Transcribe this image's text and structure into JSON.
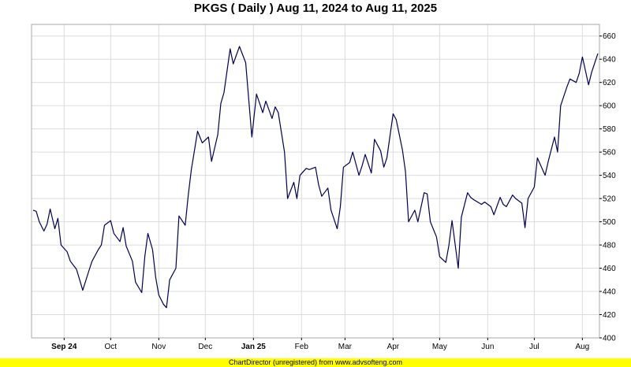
{
  "chart_data": {
    "type": "line",
    "title": "PKGS ( Daily ) Aug 11, 2024 to Aug 11, 2025",
    "xlabel": "",
    "ylabel": "",
    "x_ticks": [
      {
        "label": "Sep 24",
        "bold": true
      },
      {
        "label": "Oct",
        "bold": false
      },
      {
        "label": "Nov",
        "bold": false
      },
      {
        "label": "Dec",
        "bold": false
      },
      {
        "label": "Jan 25",
        "bold": true
      },
      {
        "label": "Feb",
        "bold": false
      },
      {
        "label": "Mar",
        "bold": false
      },
      {
        "label": "Apr",
        "bold": false
      },
      {
        "label": "May",
        "bold": false
      },
      {
        "label": "Jun",
        "bold": false
      },
      {
        "label": "Jul",
        "bold": false
      },
      {
        "label": "Aug",
        "bold": false
      }
    ],
    "y_ticks": [
      400,
      420,
      440,
      460,
      480,
      500,
      520,
      540,
      560,
      580,
      600,
      620,
      640,
      660
    ],
    "ylim": [
      400,
      670
    ],
    "grid": true,
    "series": [
      {
        "color": "#000050",
        "x": [
          "2024-08-12",
          "2024-08-14",
          "2024-08-16",
          "2024-08-19",
          "2024-08-21",
          "2024-08-23",
          "2024-08-26",
          "2024-08-28",
          "2024-08-30",
          "2024-09-03",
          "2024-09-05",
          "2024-09-09",
          "2024-09-11",
          "2024-09-13",
          "2024-09-17",
          "2024-09-19",
          "2024-09-23",
          "2024-09-25",
          "2024-09-27",
          "2024-10-01",
          "2024-10-03",
          "2024-10-07",
          "2024-10-09",
          "2024-10-11",
          "2024-10-15",
          "2024-10-17",
          "2024-10-21",
          "2024-10-23",
          "2024-10-25",
          "2024-10-28",
          "2024-10-30",
          "2024-11-01",
          "2024-11-04",
          "2024-11-06",
          "2024-11-08",
          "2024-11-12",
          "2024-11-14",
          "2024-11-18",
          "2024-11-20",
          "2024-11-22",
          "2024-11-26",
          "2024-11-29",
          "2024-12-03",
          "2024-12-05",
          "2024-12-09",
          "2024-12-11",
          "2024-12-13",
          "2024-12-17",
          "2024-12-19",
          "2024-12-23",
          "2024-12-27",
          "2024-12-31",
          "2025-01-03",
          "2025-01-07",
          "2025-01-09",
          "2025-01-13",
          "2025-01-15",
          "2025-01-17",
          "2025-01-21",
          "2025-01-23",
          "2025-01-27",
          "2025-01-29",
          "2025-01-31",
          "2025-02-04",
          "2025-02-06",
          "2025-02-10",
          "2025-02-12",
          "2025-02-14",
          "2025-02-18",
          "2025-02-20",
          "2025-02-24",
          "2025-02-26",
          "2025-02-28",
          "2025-03-04",
          "2025-03-06",
          "2025-03-10",
          "2025-03-12",
          "2025-03-14",
          "2025-03-18",
          "2025-03-20",
          "2025-03-24",
          "2025-03-26",
          "2025-03-28",
          "2025-04-01",
          "2025-04-03",
          "2025-04-07",
          "2025-04-09",
          "2025-04-11",
          "2025-04-15",
          "2025-04-17",
          "2025-04-21",
          "2025-04-23",
          "2025-04-25",
          "2025-04-29",
          "2025-05-01",
          "2025-05-05",
          "2025-05-07",
          "2025-05-09",
          "2025-05-13",
          "2025-05-15",
          "2025-05-19",
          "2025-05-21",
          "2025-05-23",
          "2025-05-28",
          "2025-05-30",
          "2025-06-03",
          "2025-06-05",
          "2025-06-09",
          "2025-06-11",
          "2025-06-13",
          "2025-06-17",
          "2025-06-19",
          "2025-06-23",
          "2025-06-25",
          "2025-06-27",
          "2025-07-01",
          "2025-07-03",
          "2025-07-08",
          "2025-07-10",
          "2025-07-14",
          "2025-07-16",
          "2025-07-18",
          "2025-07-22",
          "2025-07-24",
          "2025-07-28",
          "2025-07-30",
          "2025-08-01",
          "2025-08-05",
          "2025-08-07",
          "2025-08-11"
        ],
        "values": [
          510,
          509,
          500,
          492,
          498,
          511,
          494,
          503,
          480,
          474,
          466,
          459,
          450,
          441,
          458,
          466,
          476,
          480,
          497,
          501,
          490,
          483,
          495,
          479,
          466,
          448,
          439,
          470,
          490,
          476,
          452,
          437,
          429,
          426,
          450,
          460,
          505,
          497,
          523,
          545,
          578,
          568,
          573,
          552,
          575,
          602,
          611,
          649,
          636,
          651,
          637,
          573,
          610,
          594,
          604,
          589,
          599,
          594,
          560,
          520,
          534,
          520,
          540,
          546,
          545,
          547,
          532,
          522,
          529,
          510,
          494,
          513,
          547,
          551,
          560,
          540,
          548,
          558,
          542,
          571,
          561,
          547,
          555,
          593,
          588,
          562,
          543,
          500,
          510,
          500,
          525,
          524,
          500,
          487,
          470,
          465,
          480,
          501,
          460,
          504,
          525,
          521,
          519,
          515,
          517,
          513,
          506,
          521,
          515,
          513,
          523,
          520,
          516,
          495,
          520,
          530,
          555,
          540,
          552,
          573,
          560,
          600,
          616,
          623,
          620,
          628,
          642,
          618,
          629,
          645
        ]
      }
    ]
  },
  "footer": {
    "credit": "ChartDirector (unregistered) from www.advsofteng.com"
  }
}
